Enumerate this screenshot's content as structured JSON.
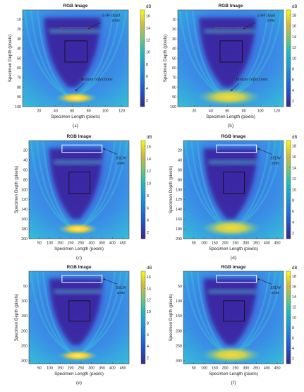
{
  "palette": {
    "deep": "#3a1f9a",
    "mid": "#2f6fe0",
    "cyan": "#3ec4d8",
    "yellow": "#f6e21e",
    "sslw_box": "#ffffff",
    "saw_box": "#a85a3a",
    "roi_box": "#111111"
  },
  "chart_data": [
    {
      "id": "a",
      "type": "heatmap",
      "panel_label": "(a)",
      "title": "RGB Image",
      "xlabel": "Specimen Length (pixels)",
      "ylabel": "Specimen Depth (pixels)",
      "xlim": [
        0,
        128
      ],
      "ylim": [
        0,
        100
      ],
      "x_ticks": [
        20,
        40,
        60,
        80,
        100,
        120
      ],
      "y_ticks": [
        10,
        20,
        30,
        40,
        50,
        60,
        70,
        80,
        90,
        100
      ],
      "colorbar": {
        "unit": "dB",
        "ticks": [
          2,
          4,
          6,
          8,
          10,
          12,
          14,
          16
        ],
        "range": [
          1,
          17
        ]
      },
      "annotations": [
        {
          "text": "SAW dead zone",
          "box": "saw"
        },
        {
          "text": "Bottom reflections",
          "target": "bottom"
        }
      ],
      "bottom_reflection": {
        "x": 65,
        "y": 91,
        "strength": "peak"
      }
    },
    {
      "id": "b",
      "type": "heatmap",
      "panel_label": "(b)",
      "title": "RGB Image",
      "xlabel": "Specimen Length (pixels)",
      "ylabel": "Specimen Depth (pixels)",
      "xlim": [
        0,
        128
      ],
      "ylim": [
        0,
        100
      ],
      "x_ticks": [
        20,
        40,
        60,
        80,
        100,
        120
      ],
      "y_ticks": [
        10,
        20,
        30,
        40,
        50,
        60,
        70,
        80,
        90,
        100
      ],
      "colorbar": {
        "unit": "dB",
        "ticks": [
          2,
          4,
          6,
          8,
          10,
          12,
          14,
          16,
          18
        ],
        "range": [
          1,
          19
        ]
      },
      "annotations": [
        {
          "text": "SAW dead zone",
          "box": "saw"
        },
        {
          "text": "Bottom reflections",
          "target": "bottom"
        }
      ],
      "bottom_reflection": {
        "x": 62,
        "y": 90,
        "strength": "broad"
      }
    },
    {
      "id": "c",
      "type": "heatmap",
      "panel_label": "(c)",
      "title": "RGB Image",
      "xlabel": "Specimen Length (pixels)",
      "ylabel": "Specimen Depth (pixels)",
      "xlim": [
        0,
        480
      ],
      "ylim": [
        0,
        200
      ],
      "x_ticks": [
        50,
        100,
        150,
        200,
        250,
        300,
        350,
        400,
        450
      ],
      "y_ticks": [
        20,
        40,
        60,
        80,
        100,
        120,
        140,
        160,
        180,
        200
      ],
      "colorbar": {
        "unit": "dB",
        "ticks": [
          2,
          4,
          6,
          8,
          10,
          12,
          14,
          16
        ],
        "range": [
          1,
          17
        ]
      },
      "annotations": [
        {
          "text": "SSLW zone",
          "box": "sslw"
        }
      ],
      "bottom_reflection": {
        "x": 235,
        "y": 180,
        "strength": "peak"
      }
    },
    {
      "id": "d",
      "type": "heatmap",
      "panel_label": "(d)",
      "title": "RGB Image",
      "xlabel": "Specimen Length (pixels)",
      "ylabel": "Specimen Depth (pixels)",
      "xlim": [
        0,
        480
      ],
      "ylim": [
        0,
        200
      ],
      "x_ticks": [
        50,
        100,
        150,
        200,
        250,
        300,
        350,
        400,
        450
      ],
      "y_ticks": [
        20,
        40,
        60,
        80,
        100,
        120,
        140,
        160,
        180,
        200
      ],
      "colorbar": {
        "unit": "dB",
        "ticks": [
          2,
          4,
          6,
          8,
          10,
          12,
          14,
          16,
          18
        ],
        "range": [
          1,
          19
        ]
      },
      "annotations": [
        {
          "text": "SSLW zone",
          "box": "sslw"
        }
      ],
      "bottom_reflection": {
        "x": 230,
        "y": 178,
        "strength": "broad"
      }
    },
    {
      "id": "e",
      "type": "heatmap",
      "panel_label": "(e)",
      "title": "RGB Image",
      "xlabel": "Specimen Length (pixels)",
      "ylabel": "Specimen Depth (pixels)",
      "xlim": [
        0,
        480
      ],
      "ylim": [
        0,
        310
      ],
      "x_ticks": [
        50,
        100,
        150,
        200,
        250,
        300,
        350,
        400,
        450
      ],
      "y_ticks": [
        50,
        100,
        150,
        200,
        250,
        300
      ],
      "colorbar": {
        "unit": "dB",
        "ticks": [
          2,
          4,
          6,
          8,
          10,
          12,
          14,
          16
        ],
        "range": [
          1,
          17
        ]
      },
      "annotations": [
        {
          "text": "SSLW zone",
          "box": "sslw"
        }
      ],
      "bottom_reflection": {
        "x": 235,
        "y": 283,
        "strength": "peak"
      }
    },
    {
      "id": "f",
      "type": "heatmap",
      "panel_label": "(f)",
      "title": "RGB Image",
      "xlabel": "Specimen Length (pixels)",
      "ylabel": "Specimen Depth (pixels)",
      "xlim": [
        0,
        480
      ],
      "ylim": [
        0,
        310
      ],
      "x_ticks": [
        50,
        100,
        150,
        200,
        250,
        300,
        350,
        400,
        450
      ],
      "y_ticks": [
        50,
        100,
        150,
        200,
        250,
        300
      ],
      "colorbar": {
        "unit": "dB",
        "ticks": [
          2,
          4,
          6,
          8,
          10,
          12,
          14,
          16,
          18
        ],
        "range": [
          1,
          19
        ]
      },
      "annotations": [
        {
          "text": "SSLW zone",
          "box": "sslw"
        }
      ],
      "bottom_reflection": {
        "x": 230,
        "y": 280,
        "strength": "broad"
      }
    }
  ]
}
